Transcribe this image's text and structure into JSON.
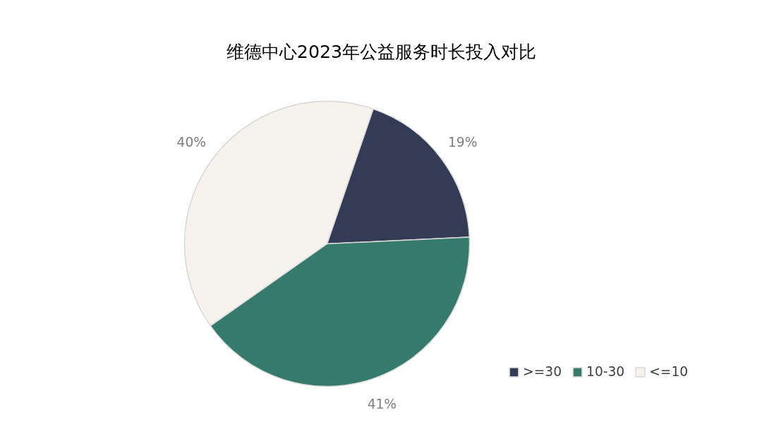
{
  "chart_data": {
    "type": "pie",
    "title": "维德中心2023年公益服务时长投入对比",
    "categories": [
      ">=30",
      "10-30",
      "<=10"
    ],
    "values": [
      19,
      41,
      40
    ],
    "colors": [
      "#333c54",
      "#367a6c",
      "#f6f3ef"
    ],
    "value_labels": [
      "19%",
      "41%",
      "40%"
    ],
    "legend": "bottom right"
  }
}
